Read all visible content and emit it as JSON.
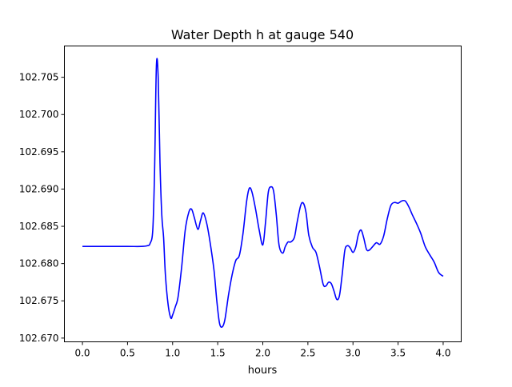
{
  "chart_data": {
    "type": "line",
    "title": "Water Depth h at gauge 540",
    "xlabel": "hours",
    "ylabel": "",
    "xlim": [
      -0.2,
      4.2
    ],
    "ylim": [
      102.6695,
      102.7092
    ],
    "grid": false,
    "legend": "none",
    "xticks": [
      0.0,
      0.5,
      1.0,
      1.5,
      2.0,
      2.5,
      3.0,
      3.5,
      4.0
    ],
    "xtick_labels": [
      "0.0",
      "0.5",
      "1.0",
      "1.5",
      "2.0",
      "2.5",
      "3.0",
      "3.5",
      "4.0"
    ],
    "yticks": [
      102.67,
      102.675,
      102.68,
      102.685,
      102.69,
      102.695,
      102.7,
      102.705
    ],
    "ytick_labels": [
      "102.670",
      "102.675",
      "102.680",
      "102.685",
      "102.690",
      "102.695",
      "102.700",
      "102.705"
    ],
    "series": [
      {
        "color": "#0000ff",
        "x": [
          0.0,
          0.2,
          0.5,
          0.65,
          0.72,
          0.75,
          0.78,
          0.8,
          0.82,
          0.84,
          0.86,
          0.88,
          0.9,
          0.92,
          0.95,
          0.98,
          1.0,
          1.03,
          1.06,
          1.1,
          1.14,
          1.18,
          1.21,
          1.24,
          1.28,
          1.31,
          1.34,
          1.38,
          1.42,
          1.46,
          1.49,
          1.52,
          1.55,
          1.58,
          1.62,
          1.66,
          1.7,
          1.74,
          1.78,
          1.82,
          1.85,
          1.88,
          1.92,
          1.96,
          2.0,
          2.03,
          2.06,
          2.09,
          2.12,
          2.15,
          2.18,
          2.22,
          2.25,
          2.28,
          2.31,
          2.35,
          2.38,
          2.42,
          2.45,
          2.48,
          2.51,
          2.55,
          2.59,
          2.63,
          2.67,
          2.7,
          2.73,
          2.76,
          2.79,
          2.82,
          2.85,
          2.88,
          2.91,
          2.94,
          2.97,
          3.0,
          3.03,
          3.06,
          3.09,
          3.12,
          3.15,
          3.18,
          3.22,
          3.26,
          3.3,
          3.34,
          3.38,
          3.42,
          3.46,
          3.5,
          3.54,
          3.58,
          3.62,
          3.66,
          3.7,
          3.75,
          3.8,
          3.85,
          3.9,
          3.95,
          4.0
        ],
        "y": [
          102.6823,
          102.6823,
          102.6823,
          102.6823,
          102.6824,
          102.6827,
          102.6845,
          102.6925,
          102.7065,
          102.705,
          102.6935,
          102.6865,
          102.6835,
          102.6785,
          102.6745,
          102.6727,
          102.6731,
          102.6742,
          102.6755,
          102.6795,
          102.6845,
          102.6869,
          102.6873,
          102.6862,
          102.6846,
          102.6858,
          102.6868,
          102.6853,
          102.6825,
          102.679,
          102.675,
          102.672,
          102.6715,
          102.6725,
          102.6758,
          102.6785,
          102.6804,
          102.6811,
          102.684,
          102.6883,
          102.6901,
          102.6896,
          102.6873,
          102.6845,
          102.6825,
          102.6855,
          102.6895,
          102.6903,
          102.6897,
          102.6865,
          102.6825,
          102.6814,
          102.6823,
          102.6829,
          102.6829,
          102.6835,
          102.6855,
          102.6878,
          102.6881,
          102.6868,
          102.6838,
          102.6822,
          102.6815,
          102.6795,
          102.6772,
          102.677,
          102.6775,
          102.6773,
          102.6763,
          102.6752,
          102.6757,
          102.6785,
          102.6818,
          102.6824,
          102.6821,
          102.6815,
          102.6822,
          102.6839,
          102.6845,
          102.6834,
          102.6819,
          102.6818,
          102.6823,
          102.6828,
          102.6826,
          102.6837,
          102.686,
          102.6878,
          102.6882,
          102.6881,
          102.6884,
          102.6884,
          102.6876,
          102.6865,
          102.6855,
          102.6841,
          102.6823,
          102.6812,
          102.6802,
          102.6788,
          102.6783
        ]
      }
    ]
  }
}
